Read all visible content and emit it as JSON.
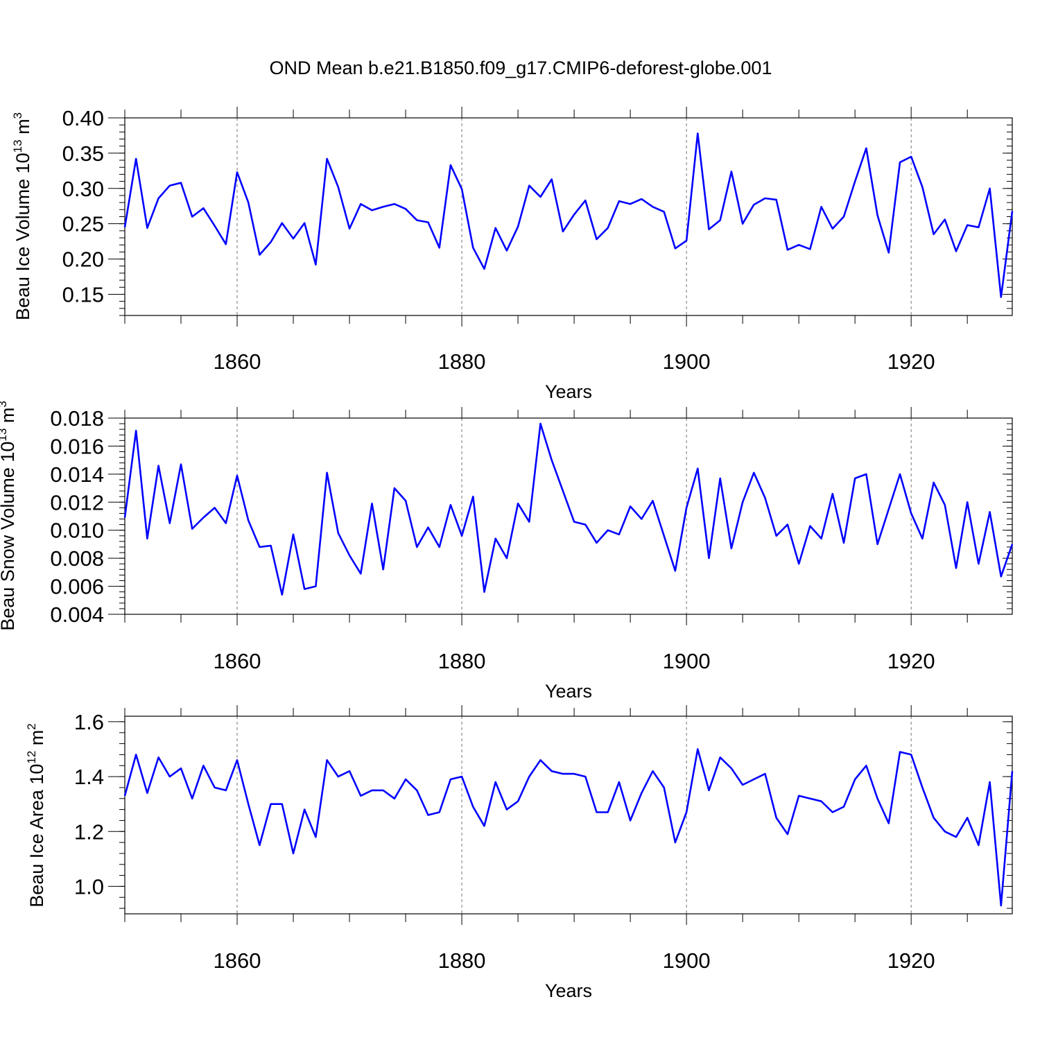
{
  "chart_data": {
    "title": "OND Mean b.e21.B1850.f09_g17.CMIP6-deforest-globe.001",
    "line_color": "#0000ff",
    "panels": [
      {
        "type": "line",
        "ylabel": "Beau Ice Volume 10",
        "ylabel_exp": "13",
        "ylabel_unit": " m",
        "ylabel_unit_exp": "3",
        "xlabel": "Years",
        "xlim": [
          1850,
          1929
        ],
        "ylim": [
          0.12,
          0.4
        ],
        "yticks": [
          0.15,
          0.2,
          0.25,
          0.3,
          0.35,
          0.4
        ],
        "ytick_labels": [
          "0.15",
          "0.20",
          "0.25",
          "0.30",
          "0.35",
          "0.40"
        ],
        "xticks": [
          1860,
          1880,
          1900,
          1920
        ],
        "xtick_labels": [
          "1860",
          "1880",
          "1900",
          "1920"
        ],
        "x_start": 1850,
        "values": [
          0.245,
          0.342,
          0.244,
          0.286,
          0.304,
          0.308,
          0.26,
          0.272,
          0.247,
          0.221,
          0.323,
          0.28,
          0.206,
          0.224,
          0.251,
          0.229,
          0.251,
          0.192,
          0.342,
          0.302,
          0.243,
          0.278,
          0.269,
          0.274,
          0.278,
          0.271,
          0.255,
          0.252,
          0.216,
          0.333,
          0.299,
          0.216,
          0.186,
          0.244,
          0.212,
          0.246,
          0.304,
          0.288,
          0.313,
          0.239,
          0.263,
          0.283,
          0.228,
          0.244,
          0.282,
          0.278,
          0.285,
          0.274,
          0.267,
          0.215,
          0.226,
          0.378,
          0.242,
          0.255,
          0.324,
          0.25,
          0.277,
          0.286,
          0.284,
          0.213,
          0.22,
          0.214,
          0.274,
          0.243,
          0.26,
          0.31,
          0.357,
          0.262,
          0.209,
          0.337,
          0.345,
          0.302,
          0.235,
          0.256,
          0.211,
          0.248,
          0.245,
          0.3,
          0.146,
          0.268
        ]
      },
      {
        "type": "line",
        "ylabel": "Beau Snow Volume 10",
        "ylabel_exp": "13",
        "ylabel_unit": " m",
        "ylabel_unit_exp": "3",
        "xlabel": "Years",
        "xlim": [
          1850,
          1929
        ],
        "ylim": [
          0.004,
          0.018
        ],
        "yticks": [
          0.004,
          0.006,
          0.008,
          0.01,
          0.012,
          0.014,
          0.016,
          0.018
        ],
        "ytick_labels": [
          "0.004",
          "0.006",
          "0.008",
          "0.010",
          "0.012",
          "0.014",
          "0.016",
          "0.018"
        ],
        "xticks": [
          1860,
          1880,
          1900,
          1920
        ],
        "xtick_labels": [
          "1860",
          "1880",
          "1900",
          "1920"
        ],
        "x_start": 1850,
        "values": [
          0.0109,
          0.0171,
          0.0094,
          0.0146,
          0.0105,
          0.0147,
          0.0101,
          0.0109,
          0.0116,
          0.0105,
          0.0139,
          0.0107,
          0.0088,
          0.0089,
          0.0054,
          0.0097,
          0.0058,
          0.006,
          0.0141,
          0.0098,
          0.0082,
          0.0069,
          0.0119,
          0.0072,
          0.013,
          0.0121,
          0.0088,
          0.0102,
          0.0088,
          0.0118,
          0.0096,
          0.0124,
          0.0056,
          0.0094,
          0.008,
          0.0119,
          0.0106,
          0.0176,
          0.015,
          0.0128,
          0.0106,
          0.0104,
          0.0091,
          0.01,
          0.0097,
          0.0117,
          0.0108,
          0.0121,
          0.0096,
          0.0071,
          0.0116,
          0.0144,
          0.008,
          0.0137,
          0.0087,
          0.012,
          0.0141,
          0.0123,
          0.0096,
          0.0104,
          0.0076,
          0.0103,
          0.0094,
          0.0126,
          0.0091,
          0.0137,
          0.014,
          0.009,
          0.0115,
          0.014,
          0.0112,
          0.0094,
          0.0134,
          0.0118,
          0.0073,
          0.012,
          0.0076,
          0.0113,
          0.0067,
          0.009
        ]
      },
      {
        "type": "line",
        "ylabel": "Beau Ice Area 10",
        "ylabel_exp": "12",
        "ylabel_unit": " m",
        "ylabel_unit_exp": "2",
        "xlabel": "Years",
        "xlim": [
          1850,
          1929
        ],
        "ylim": [
          0.9,
          1.62
        ],
        "yticks": [
          1.0,
          1.2,
          1.4,
          1.6
        ],
        "ytick_labels": [
          "1.0",
          "1.2",
          "1.4",
          "1.6"
        ],
        "xticks": [
          1860,
          1880,
          1900,
          1920
        ],
        "xtick_labels": [
          "1860",
          "1880",
          "1900",
          "1920"
        ],
        "x_start": 1850,
        "values": [
          1.33,
          1.48,
          1.34,
          1.47,
          1.4,
          1.43,
          1.32,
          1.44,
          1.36,
          1.35,
          1.46,
          1.3,
          1.15,
          1.3,
          1.3,
          1.12,
          1.28,
          1.18,
          1.46,
          1.4,
          1.42,
          1.33,
          1.35,
          1.35,
          1.32,
          1.39,
          1.35,
          1.26,
          1.27,
          1.39,
          1.4,
          1.29,
          1.22,
          1.38,
          1.28,
          1.31,
          1.4,
          1.46,
          1.42,
          1.41,
          1.41,
          1.4,
          1.27,
          1.27,
          1.38,
          1.24,
          1.34,
          1.42,
          1.36,
          1.16,
          1.27,
          1.5,
          1.35,
          1.47,
          1.43,
          1.37,
          1.39,
          1.41,
          1.25,
          1.19,
          1.33,
          1.32,
          1.31,
          1.27,
          1.29,
          1.39,
          1.44,
          1.32,
          1.23,
          1.49,
          1.48,
          1.36,
          1.25,
          1.2,
          1.18,
          1.25,
          1.15,
          1.38,
          0.93,
          1.42
        ]
      }
    ]
  }
}
